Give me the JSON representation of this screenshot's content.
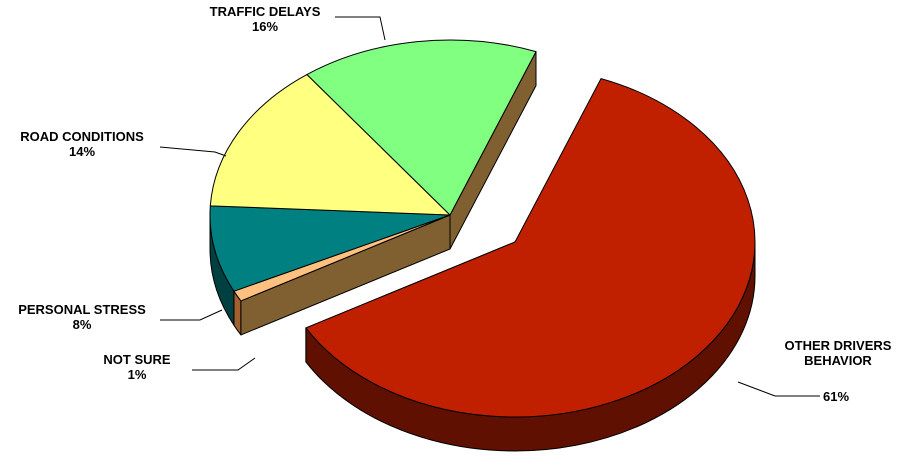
{
  "chart_data": {
    "type": "pie",
    "style": "3d-exploded",
    "title": "",
    "slices": [
      {
        "name": "OTHER DRIVERS BEHAVIOR",
        "label_lines": [
          "OTHER DRIVERS",
          "BEHAVIOR"
        ],
        "value": 61,
        "value_label": "61%",
        "color": "#C02000",
        "side_color": "#601000",
        "exploded": true
      },
      {
        "name": "NOT SURE",
        "label_lines": [
          "NOT SURE"
        ],
        "value": 1,
        "value_label": "1%",
        "color": "#FFC080",
        "side_color": "#A06030",
        "exploded": false
      },
      {
        "name": "PERSONAL STRESS",
        "label_lines": [
          "PERSONAL STRESS"
        ],
        "value": 8,
        "value_label": "8%",
        "color": "#008080",
        "side_color": "#004040",
        "exploded": false
      },
      {
        "name": "ROAD CONDITIONS",
        "label_lines": [
          "ROAD CONDITIONS"
        ],
        "value": 14,
        "value_label": "14%",
        "color": "#FFFF80",
        "side_color": "#808040",
        "exploded": false
      },
      {
        "name": "TRAFFIC DELAYS",
        "label_lines": [
          "TRAFFIC DELAYS"
        ],
        "value": 16,
        "value_label": "16%",
        "color": "#80FF80",
        "side_color": "#408040",
        "exploded": false
      }
    ],
    "cut_face_color": "#806030",
    "legend": "none",
    "label_placement": "outside-with-leader-lines"
  }
}
